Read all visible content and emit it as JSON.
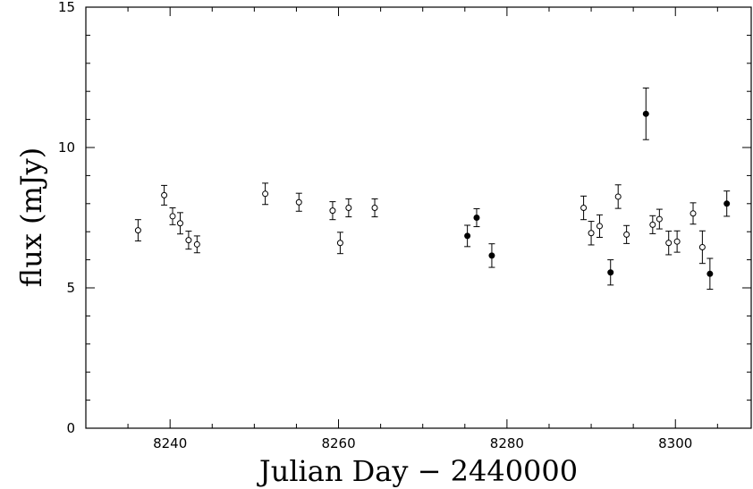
{
  "chart_data": {
    "type": "scatter",
    "title": "",
    "xlabel": "Julian Day − 2440000",
    "ylabel": "flux (mJy)",
    "xlim": [
      8230,
      8309
    ],
    "ylim": [
      0,
      15
    ],
    "x_ticks": [
      8240,
      8260,
      8280,
      8300
    ],
    "y_ticks": [
      0,
      5,
      10,
      15
    ],
    "grid": false,
    "legend": "none",
    "series": [
      {
        "marker": "open-circle",
        "points": [
          {
            "x": 8236.2,
            "y": 7.05,
            "err": 0.38
          },
          {
            "x": 8239.3,
            "y": 8.3,
            "err": 0.35
          },
          {
            "x": 8240.3,
            "y": 7.55,
            "err": 0.3
          },
          {
            "x": 8241.2,
            "y": 7.3,
            "err": 0.38
          },
          {
            "x": 8242.2,
            "y": 6.7,
            "err": 0.32
          },
          {
            "x": 8243.2,
            "y": 6.55,
            "err": 0.3
          },
          {
            "x": 8251.3,
            "y": 8.35,
            "err": 0.38
          },
          {
            "x": 8255.3,
            "y": 8.05,
            "err": 0.32
          },
          {
            "x": 8259.3,
            "y": 7.75,
            "err": 0.32
          },
          {
            "x": 8260.2,
            "y": 6.6,
            "err": 0.38
          },
          {
            "x": 8261.2,
            "y": 7.85,
            "err": 0.32
          },
          {
            "x": 8264.3,
            "y": 7.85,
            "err": 0.32
          },
          {
            "x": 8289.1,
            "y": 7.85,
            "err": 0.42
          },
          {
            "x": 8290.0,
            "y": 6.95,
            "err": 0.42
          },
          {
            "x": 8291.0,
            "y": 7.2,
            "err": 0.4
          },
          {
            "x": 8293.2,
            "y": 8.25,
            "err": 0.42
          },
          {
            "x": 8294.2,
            "y": 6.9,
            "err": 0.32
          },
          {
            "x": 8297.3,
            "y": 7.25,
            "err": 0.32
          },
          {
            "x": 8298.1,
            "y": 7.45,
            "err": 0.35
          },
          {
            "x": 8299.2,
            "y": 6.6,
            "err": 0.42
          },
          {
            "x": 8300.2,
            "y": 6.65,
            "err": 0.38
          },
          {
            "x": 8302.1,
            "y": 7.65,
            "err": 0.38
          },
          {
            "x": 8303.2,
            "y": 6.45,
            "err": 0.58
          }
        ]
      },
      {
        "marker": "filled-circle",
        "points": [
          {
            "x": 8275.3,
            "y": 6.85,
            "err": 0.38
          },
          {
            "x": 8276.4,
            "y": 7.5,
            "err": 0.32
          },
          {
            "x": 8278.2,
            "y": 6.15,
            "err": 0.42
          },
          {
            "x": 8292.3,
            "y": 5.55,
            "err": 0.45
          },
          {
            "x": 8296.5,
            "y": 11.2,
            "err": 0.92
          },
          {
            "x": 8304.1,
            "y": 5.5,
            "err": 0.55
          },
          {
            "x": 8306.1,
            "y": 8.0,
            "err": 0.45
          }
        ]
      }
    ]
  }
}
